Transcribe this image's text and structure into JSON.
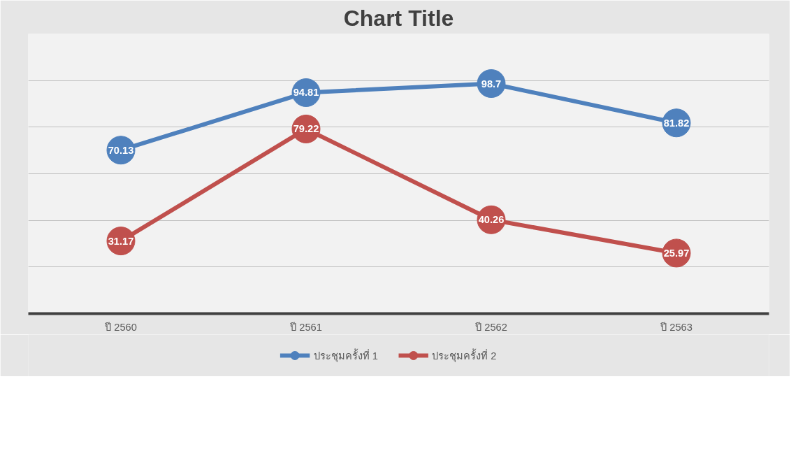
{
  "chart_data": {
    "type": "line",
    "title": "Chart Title",
    "categories": [
      "ปี 2560",
      "ปี 2561",
      "ปี 2562",
      "ปี 2563"
    ],
    "series": [
      {
        "name": "ประชุมครั้งที่ 1",
        "color": "#4f81bd",
        "values": [
          70.13,
          94.81,
          98.7,
          81.82
        ]
      },
      {
        "name": "ประชุมครั้งที่ 2",
        "color": "#c0504d",
        "values": [
          31.17,
          79.22,
          40.26,
          25.97
        ]
      }
    ],
    "ylim": [
      0,
      120
    ],
    "yticks": [
      {
        "value": 0,
        "label": null
      },
      {
        "value": 20,
        "label": null
      },
      {
        "value": 40,
        "label": null
      },
      {
        "value": 60,
        "label": null
      },
      {
        "value": 80,
        "label": null
      },
      {
        "value": 100,
        "label": null
      },
      {
        "value": 120,
        "label": null
      }
    ],
    "tick_labels": "x",
    "grid": "y",
    "legend": "bottom",
    "marker": "circle",
    "line_style": "solid",
    "data_labels": true
  }
}
